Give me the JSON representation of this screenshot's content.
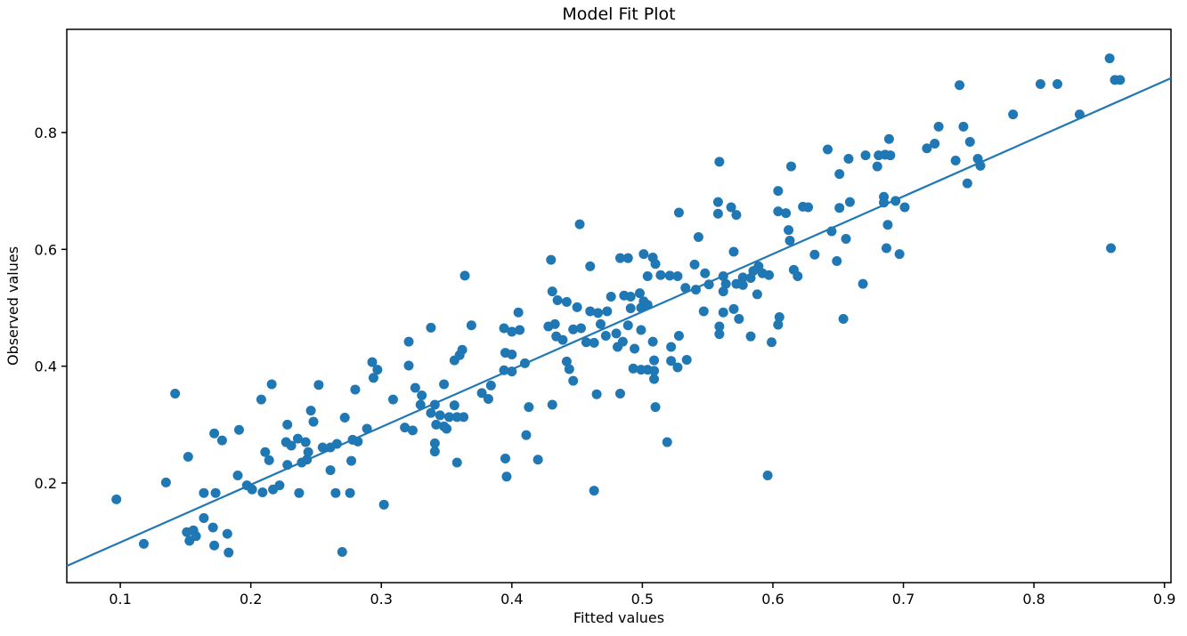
{
  "chart_data": {
    "type": "scatter",
    "title": "Model Fit Plot",
    "xlabel": "Fitted values",
    "ylabel": "Observed values",
    "xlim": [
      0.059,
      0.905
    ],
    "ylim": [
      0.0295,
      0.9766
    ],
    "xticks": [
      "0.1",
      "0.2",
      "0.3",
      "0.4",
      "0.5",
      "0.6",
      "0.7",
      "0.8",
      "0.9"
    ],
    "yticks": [
      "0.2",
      "0.4",
      "0.6",
      "0.8"
    ],
    "grid": false,
    "legend": "none",
    "marker_color": "#1f77b4",
    "line_color": "#1f77b4",
    "spine_color": "#000000",
    "marker_radius_px": 5.5,
    "fit_line": {
      "x": [
        0.059,
        0.905
      ],
      "y": [
        0.058,
        0.893
      ]
    },
    "points": [
      [
        0.097,
        0.172
      ],
      [
        0.118,
        0.096
      ],
      [
        0.135,
        0.201
      ],
      [
        0.142,
        0.353
      ],
      [
        0.152,
        0.245
      ],
      [
        0.151,
        0.116
      ],
      [
        0.156,
        0.119
      ],
      [
        0.158,
        0.109
      ],
      [
        0.153,
        0.101
      ],
      [
        0.164,
        0.14
      ],
      [
        0.171,
        0.124
      ],
      [
        0.182,
        0.113
      ],
      [
        0.172,
        0.093
      ],
      [
        0.183,
        0.081
      ],
      [
        0.172,
        0.285
      ],
      [
        0.178,
        0.273
      ],
      [
        0.191,
        0.291
      ],
      [
        0.19,
        0.213
      ],
      [
        0.164,
        0.183
      ],
      [
        0.173,
        0.183
      ],
      [
        0.197,
        0.196
      ],
      [
        0.201,
        0.189
      ],
      [
        0.209,
        0.184
      ],
      [
        0.217,
        0.189
      ],
      [
        0.222,
        0.196
      ],
      [
        0.237,
        0.183
      ],
      [
        0.265,
        0.183
      ],
      [
        0.276,
        0.183
      ],
      [
        0.302,
        0.163
      ],
      [
        0.27,
        0.082
      ],
      [
        0.208,
        0.343
      ],
      [
        0.216,
        0.369
      ],
      [
        0.252,
        0.368
      ],
      [
        0.28,
        0.36
      ],
      [
        0.211,
        0.253
      ],
      [
        0.214,
        0.239
      ],
      [
        0.227,
        0.27
      ],
      [
        0.231,
        0.264
      ],
      [
        0.236,
        0.276
      ],
      [
        0.242,
        0.27
      ],
      [
        0.244,
        0.253
      ],
      [
        0.239,
        0.235
      ],
      [
        0.243,
        0.24
      ],
      [
        0.228,
        0.231
      ],
      [
        0.228,
        0.3
      ],
      [
        0.246,
        0.324
      ],
      [
        0.248,
        0.305
      ],
      [
        0.255,
        0.261
      ],
      [
        0.261,
        0.261
      ],
      [
        0.266,
        0.267
      ],
      [
        0.272,
        0.312
      ],
      [
        0.278,
        0.274
      ],
      [
        0.282,
        0.271
      ],
      [
        0.261,
        0.222
      ],
      [
        0.277,
        0.238
      ],
      [
        0.289,
        0.293
      ],
      [
        0.293,
        0.407
      ],
      [
        0.297,
        0.394
      ],
      [
        0.294,
        0.38
      ],
      [
        0.309,
        0.343
      ],
      [
        0.318,
        0.295
      ],
      [
        0.324,
        0.29
      ],
      [
        0.321,
        0.442
      ],
      [
        0.321,
        0.401
      ],
      [
        0.326,
        0.363
      ],
      [
        0.331,
        0.35
      ],
      [
        0.33,
        0.334
      ],
      [
        0.338,
        0.32
      ],
      [
        0.345,
        0.316
      ],
      [
        0.35,
        0.293
      ],
      [
        0.341,
        0.334
      ],
      [
        0.342,
        0.3
      ],
      [
        0.348,
        0.297
      ],
      [
        0.348,
        0.369
      ],
      [
        0.356,
        0.333
      ],
      [
        0.356,
        0.41
      ],
      [
        0.36,
        0.419
      ],
      [
        0.362,
        0.428
      ],
      [
        0.352,
        0.313
      ],
      [
        0.358,
        0.313
      ],
      [
        0.363,
        0.313
      ],
      [
        0.341,
        0.268
      ],
      [
        0.341,
        0.254
      ],
      [
        0.358,
        0.235
      ],
      [
        0.377,
        0.354
      ],
      [
        0.395,
        0.242
      ],
      [
        0.396,
        0.211
      ],
      [
        0.411,
        0.282
      ],
      [
        0.42,
        0.24
      ],
      [
        0.463,
        0.187
      ],
      [
        0.519,
        0.27
      ],
      [
        0.596,
        0.213
      ],
      [
        0.369,
        0.47
      ],
      [
        0.338,
        0.466
      ],
      [
        0.394,
        0.465
      ],
      [
        0.4,
        0.459
      ],
      [
        0.406,
        0.462
      ],
      [
        0.428,
        0.468
      ],
      [
        0.433,
        0.472
      ],
      [
        0.434,
        0.451
      ],
      [
        0.439,
        0.445
      ],
      [
        0.447,
        0.463
      ],
      [
        0.453,
        0.465
      ],
      [
        0.457,
        0.441
      ],
      [
        0.463,
        0.44
      ],
      [
        0.468,
        0.472
      ],
      [
        0.472,
        0.452
      ],
      [
        0.48,
        0.456
      ],
      [
        0.481,
        0.433
      ],
      [
        0.485,
        0.442
      ],
      [
        0.489,
        0.47
      ],
      [
        0.494,
        0.43
      ],
      [
        0.499,
        0.462
      ],
      [
        0.508,
        0.442
      ],
      [
        0.509,
        0.41
      ],
      [
        0.522,
        0.433
      ],
      [
        0.522,
        0.409
      ],
      [
        0.528,
        0.452
      ],
      [
        0.534,
        0.411
      ],
      [
        0.527,
        0.398
      ],
      [
        0.493,
        0.396
      ],
      [
        0.499,
        0.394
      ],
      [
        0.504,
        0.394
      ],
      [
        0.509,
        0.392
      ],
      [
        0.509,
        0.378
      ],
      [
        0.442,
        0.408
      ],
      [
        0.444,
        0.395
      ],
      [
        0.447,
        0.375
      ],
      [
        0.465,
        0.352
      ],
      [
        0.384,
        0.367
      ],
      [
        0.382,
        0.344
      ],
      [
        0.395,
        0.423
      ],
      [
        0.4,
        0.42
      ],
      [
        0.394,
        0.393
      ],
      [
        0.4,
        0.391
      ],
      [
        0.41,
        0.405
      ],
      [
        0.413,
        0.33
      ],
      [
        0.431,
        0.334
      ],
      [
        0.483,
        0.353
      ],
      [
        0.51,
        0.33
      ],
      [
        0.405,
        0.492
      ],
      [
        0.547,
        0.494
      ],
      [
        0.562,
        0.492
      ],
      [
        0.57,
        0.498
      ],
      [
        0.574,
        0.481
      ],
      [
        0.559,
        0.468
      ],
      [
        0.559,
        0.455
      ],
      [
        0.583,
        0.451
      ],
      [
        0.599,
        0.441
      ],
      [
        0.605,
        0.484
      ],
      [
        0.604,
        0.471
      ],
      [
        0.654,
        0.481
      ],
      [
        0.669,
        0.541
      ],
      [
        0.45,
        0.501
      ],
      [
        0.46,
        0.494
      ],
      [
        0.466,
        0.491
      ],
      [
        0.473,
        0.494
      ],
      [
        0.491,
        0.499
      ],
      [
        0.499,
        0.5
      ],
      [
        0.476,
        0.519
      ],
      [
        0.486,
        0.521
      ],
      [
        0.491,
        0.519
      ],
      [
        0.498,
        0.525
      ],
      [
        0.501,
        0.511
      ],
      [
        0.504,
        0.505
      ],
      [
        0.431,
        0.528
      ],
      [
        0.435,
        0.513
      ],
      [
        0.442,
        0.51
      ],
      [
        0.504,
        0.554
      ],
      [
        0.514,
        0.556
      ],
      [
        0.521,
        0.555
      ],
      [
        0.527,
        0.554
      ],
      [
        0.533,
        0.534
      ],
      [
        0.541,
        0.531
      ],
      [
        0.54,
        0.574
      ],
      [
        0.548,
        0.559
      ],
      [
        0.551,
        0.54
      ],
      [
        0.562,
        0.528
      ],
      [
        0.562,
        0.554
      ],
      [
        0.564,
        0.541
      ],
      [
        0.572,
        0.541
      ],
      [
        0.577,
        0.539
      ],
      [
        0.577,
        0.552
      ],
      [
        0.583,
        0.551
      ],
      [
        0.585,
        0.563
      ],
      [
        0.592,
        0.559
      ],
      [
        0.589,
        0.571
      ],
      [
        0.597,
        0.556
      ],
      [
        0.588,
        0.523
      ],
      [
        0.57,
        0.596
      ],
      [
        0.501,
        0.592
      ],
      [
        0.508,
        0.586
      ],
      [
        0.51,
        0.575
      ],
      [
        0.483,
        0.585
      ],
      [
        0.489,
        0.585
      ],
      [
        0.46,
        0.571
      ],
      [
        0.43,
        0.582
      ],
      [
        0.364,
        0.555
      ],
      [
        0.616,
        0.565
      ],
      [
        0.619,
        0.554
      ],
      [
        0.632,
        0.591
      ],
      [
        0.649,
        0.58
      ],
      [
        0.612,
        0.633
      ],
      [
        0.613,
        0.615
      ],
      [
        0.623,
        0.673
      ],
      [
        0.627,
        0.672
      ],
      [
        0.645,
        0.631
      ],
      [
        0.656,
        0.618
      ],
      [
        0.452,
        0.643
      ],
      [
        0.528,
        0.663
      ],
      [
        0.543,
        0.621
      ],
      [
        0.558,
        0.681
      ],
      [
        0.558,
        0.661
      ],
      [
        0.568,
        0.672
      ],
      [
        0.572,
        0.659
      ],
      [
        0.604,
        0.665
      ],
      [
        0.61,
        0.662
      ],
      [
        0.559,
        0.75
      ],
      [
        0.614,
        0.742
      ],
      [
        0.604,
        0.7
      ],
      [
        0.688,
        0.642
      ],
      [
        0.858,
        0.927
      ],
      [
        0.862,
        0.89
      ],
      [
        0.866,
        0.89
      ],
      [
        0.743,
        0.881
      ],
      [
        0.805,
        0.883
      ],
      [
        0.818,
        0.883
      ],
      [
        0.784,
        0.831
      ],
      [
        0.835,
        0.831
      ],
      [
        0.727,
        0.81
      ],
      [
        0.746,
        0.81
      ],
      [
        0.689,
        0.789
      ],
      [
        0.718,
        0.773
      ],
      [
        0.724,
        0.781
      ],
      [
        0.751,
        0.784
      ],
      [
        0.642,
        0.771
      ],
      [
        0.658,
        0.755
      ],
      [
        0.671,
        0.761
      ],
      [
        0.681,
        0.761
      ],
      [
        0.686,
        0.762
      ],
      [
        0.69,
        0.761
      ],
      [
        0.68,
        0.742
      ],
      [
        0.651,
        0.729
      ],
      [
        0.74,
        0.752
      ],
      [
        0.757,
        0.755
      ],
      [
        0.759,
        0.743
      ],
      [
        0.749,
        0.713
      ],
      [
        0.685,
        0.69
      ],
      [
        0.685,
        0.68
      ],
      [
        0.694,
        0.683
      ],
      [
        0.701,
        0.672
      ],
      [
        0.651,
        0.671
      ],
      [
        0.659,
        0.681
      ],
      [
        0.687,
        0.602
      ],
      [
        0.697,
        0.592
      ],
      [
        0.859,
        0.602
      ]
    ]
  }
}
